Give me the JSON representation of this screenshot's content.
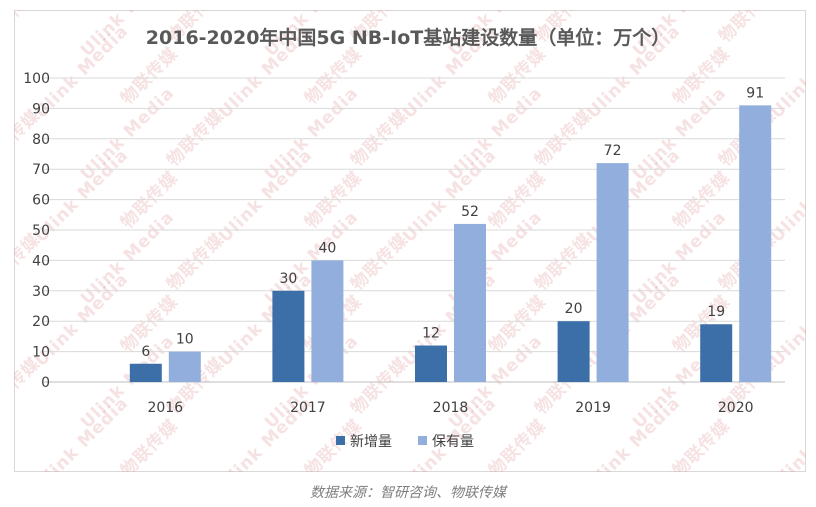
{
  "chart_data": {
    "type": "bar",
    "title": "2016-2020年中国5G NB-IoT基站建设数量（单位：万个）",
    "categories": [
      "2016",
      "2017",
      "2018",
      "2019",
      "2020"
    ],
    "series": [
      {
        "name": "新增量",
        "values": [
          6,
          30,
          12,
          20,
          19
        ],
        "color": "#3c6fa8"
      },
      {
        "name": "保有量",
        "values": [
          10,
          40,
          52,
          72,
          91
        ],
        "color": "#92aedc"
      }
    ],
    "ylim": [
      0,
      100
    ],
    "yticks": [
      0,
      10,
      20,
      30,
      40,
      50,
      60,
      70,
      80,
      90,
      100
    ],
    "grid": true,
    "legend": "bottom-center",
    "xlabel": "",
    "ylabel": ""
  },
  "watermark": {
    "text": "物联传媒",
    "subtext": "Ulink Media"
  },
  "source_note": "数据来源：智研咨询、物联传媒"
}
